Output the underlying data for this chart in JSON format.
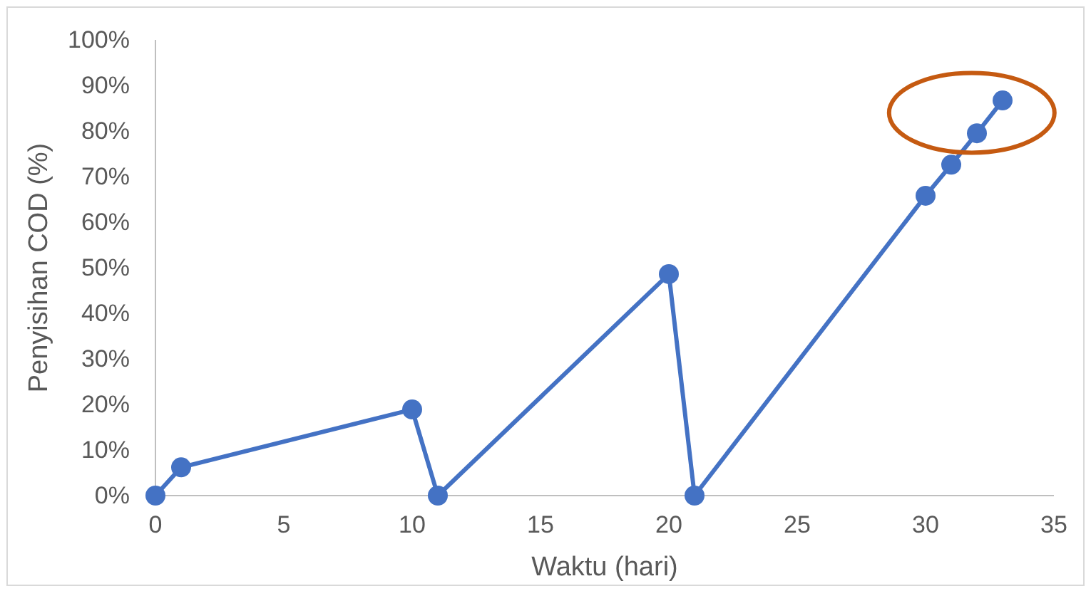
{
  "chart_data": {
    "type": "line",
    "xlabel": "Waktu (hari)",
    "ylabel": "Penyisihan COD (%)",
    "x": [
      0,
      1,
      10,
      11,
      20,
      21,
      30,
      31,
      32,
      33
    ],
    "series": [
      {
        "color": "#4472c4",
        "values": [
          0,
          6.2,
          18.9,
          0,
          48.6,
          0,
          65.8,
          72.6,
          79.5,
          86.7
        ]
      }
    ],
    "xlim": [
      0,
      35
    ],
    "xticks": [
      0,
      5,
      10,
      15,
      20,
      25,
      30,
      35
    ],
    "ylim": [
      0,
      100
    ],
    "yticks": [
      {
        "value": 0,
        "label": "0%"
      },
      {
        "value": 10,
        "label": "10%"
      },
      {
        "value": 20,
        "label": "20%"
      },
      {
        "value": 30,
        "label": "30%"
      },
      {
        "value": 40,
        "label": "40%"
      },
      {
        "value": 50,
        "label": "50%"
      },
      {
        "value": 60,
        "label": "60%"
      },
      {
        "value": 70,
        "label": "70%"
      },
      {
        "value": 80,
        "label": "80%"
      },
      {
        "value": 90,
        "label": "90%"
      },
      {
        "value": 100,
        "label": "100%"
      }
    ],
    "marker": "circle",
    "line_style": "solid",
    "grid": false
  }
}
